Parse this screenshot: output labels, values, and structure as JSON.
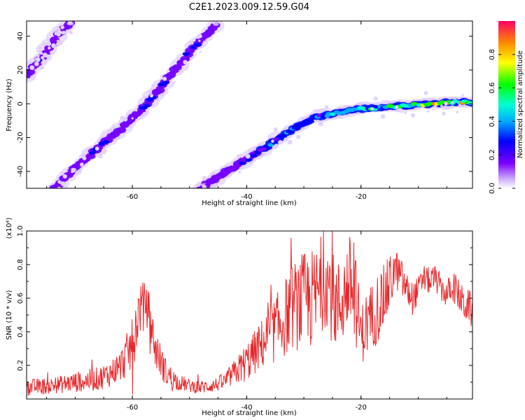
{
  "title": "C2E1.2023.009.12.59.G04",
  "chart_data": [
    {
      "type": "heatmap",
      "xlabel": "Height of straight line (km)",
      "ylabel": "Frequency (Hz)",
      "xlim": [
        -78.5,
        -0.5
      ],
      "ylim": [
        -50,
        49
      ],
      "x_ticks": [
        -60,
        -40,
        -20
      ],
      "y_ticks": [
        -40,
        -20,
        0,
        20,
        40
      ],
      "colorbar": {
        "label": "Normalized spectral amplitude",
        "ticks": [
          "0.0",
          "0.2",
          "0.4",
          "0.6",
          "0.8"
        ],
        "range": [
          0,
          1
        ],
        "colormap": "rainbow"
      },
      "traces": [
        {
          "x": [
            -78.5,
            -76,
            -74,
            -72,
            -70.5
          ],
          "y": [
            17,
            27,
            36,
            45,
            49
          ],
          "amplitude": [
            0.25,
            0.3,
            0.3,
            0.25,
            0.2
          ]
        },
        {
          "x": [
            -73.5,
            -70,
            -66,
            -62,
            -58,
            -54,
            -50,
            -46,
            -45
          ],
          "y": [
            -50,
            -38,
            -26,
            -15,
            -2,
            14,
            31,
            45,
            49
          ],
          "amplitude": [
            0.2,
            0.25,
            0.3,
            0.3,
            0.3,
            0.3,
            0.3,
            0.25,
            0.2
          ]
        },
        {
          "x": [
            -48,
            -44,
            -40,
            -36,
            -32,
            -28,
            -24,
            -20,
            -16,
            -12,
            -8,
            -4,
            -0.5
          ],
          "y": [
            -50,
            -41,
            -33,
            -24,
            -15,
            -8,
            -5,
            -3,
            -2,
            -1,
            0,
            1,
            1
          ],
          "amplitude": [
            0.2,
            0.25,
            0.35,
            0.45,
            0.45,
            0.45,
            0.5,
            0.55,
            0.7,
            0.65,
            0.9,
            0.95,
            0.9
          ]
        }
      ]
    },
    {
      "type": "line",
      "xlabel": "Height of straight line (km)",
      "ylabel": "SNR (10 * v/v)",
      "y_multiplier": "(x10⁴)",
      "xlim": [
        -78.5,
        -0.5
      ],
      "ylim": [
        0,
        1.0
      ],
      "x_ticks": [
        -60,
        -40,
        -20
      ],
      "y_ticks": [
        0.2,
        0.4,
        0.6,
        0.8,
        1.0
      ],
      "color": "#e8282b",
      "series": [
        {
          "x": [
            -78,
            -74,
            -70,
            -66,
            -64,
            -62,
            -60,
            -59,
            -58,
            -57,
            -56,
            -54,
            -52,
            -50,
            -48,
            -46,
            -44,
            -42,
            -40,
            -38,
            -36,
            -34,
            -32,
            -30,
            -28,
            -27,
            -26,
            -25,
            -24,
            -23,
            -22,
            -21,
            -20,
            -19,
            -18,
            -17,
            -16,
            -15,
            -14,
            -13,
            -12,
            -11,
            -10,
            -9,
            -8,
            -7,
            -6,
            -5,
            -4,
            -3,
            -2,
            -1,
            -0.5
          ],
          "values": [
            0.07,
            0.08,
            0.1,
            0.12,
            0.15,
            0.2,
            0.32,
            0.5,
            0.6,
            0.5,
            0.3,
            0.15,
            0.1,
            0.08,
            0.07,
            0.08,
            0.1,
            0.16,
            0.22,
            0.3,
            0.38,
            0.45,
            0.55,
            0.58,
            0.6,
            0.68,
            0.72,
            0.6,
            0.55,
            0.62,
            0.7,
            0.6,
            0.38,
            0.45,
            0.5,
            0.55,
            0.6,
            0.68,
            0.78,
            0.72,
            0.65,
            0.6,
            0.65,
            0.72,
            0.7,
            0.72,
            0.66,
            0.62,
            0.68,
            0.62,
            0.56,
            0.55,
            0.5
          ],
          "noise_amplitude": [
            0.05,
            0.05,
            0.06,
            0.07,
            0.08,
            0.1,
            0.16,
            0.18,
            0.1,
            0.14,
            0.12,
            0.08,
            0.05,
            0.04,
            0.04,
            0.04,
            0.05,
            0.08,
            0.12,
            0.14,
            0.18,
            0.22,
            0.26,
            0.3,
            0.3,
            0.3,
            0.28,
            0.28,
            0.28,
            0.28,
            0.28,
            0.28,
            0.18,
            0.2,
            0.2,
            0.22,
            0.2,
            0.18,
            0.12,
            0.12,
            0.1,
            0.1,
            0.08,
            0.08,
            0.08,
            0.08,
            0.08,
            0.08,
            0.1,
            0.1,
            0.1,
            0.1,
            0.1
          ]
        }
      ]
    }
  ]
}
